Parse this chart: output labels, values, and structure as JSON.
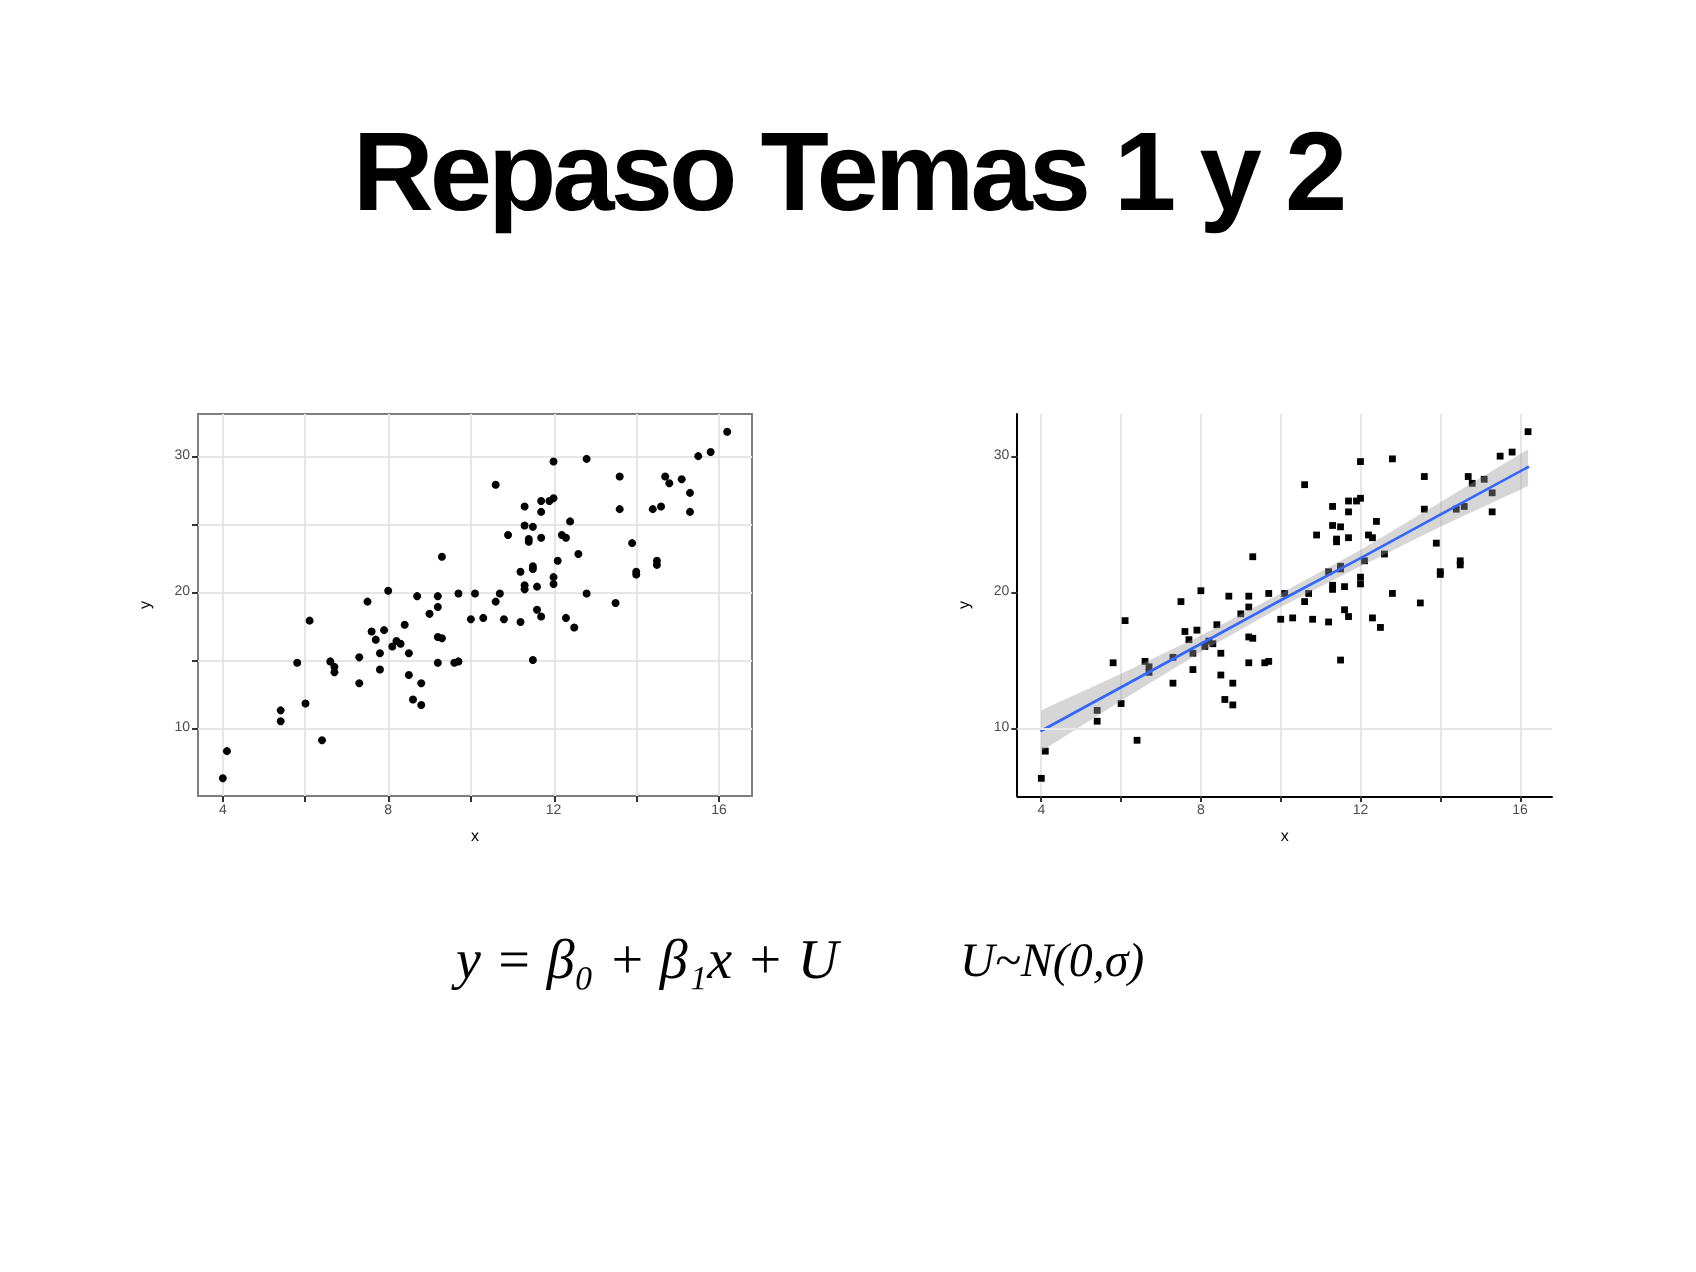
{
  "chart_data": [
    {
      "type": "other",
      "title": "Repaso Temas 1 y 2"
    },
    {
      "type": "scatter",
      "xlabel": "x",
      "ylabel": "y",
      "xlim": [
        3.4,
        16.8
      ],
      "ylim": [
        5,
        33.1
      ],
      "xticks": [
        4,
        {
          "value": 6,
          "label": null
        },
        8,
        {
          "value": 10,
          "label": null
        },
        12,
        {
          "value": 14,
          "label": null
        },
        16
      ],
      "yticks": [
        10,
        {
          "value": 15,
          "label": null
        },
        20,
        {
          "value": 25,
          "label": null
        },
        30
      ],
      "grid": true,
      "marker": "circle",
      "x": [
        4.0,
        4.1,
        5.4,
        5.4,
        5.8,
        6.0,
        6.1,
        6.4,
        6.6,
        6.7,
        6.7,
        7.3,
        7.3,
        7.5,
        7.6,
        7.7,
        7.8,
        7.8,
        7.9,
        8.0,
        8.1,
        8.2,
        8.3,
        8.4,
        8.5,
        8.5,
        8.6,
        8.7,
        8.8,
        8.8,
        9.0,
        9.2,
        9.2,
        9.2,
        9.2,
        9.3,
        9.3,
        9.6,
        9.7,
        9.7,
        10.0,
        10.1,
        10.3,
        10.6,
        10.6,
        10.7,
        10.8,
        10.9,
        11.2,
        11.2,
        11.3,
        11.3,
        11.3,
        11.3,
        11.4,
        11.4,
        11.5,
        11.5,
        11.5,
        11.5,
        11.6,
        11.6,
        11.7,
        11.7,
        11.7,
        11.7,
        11.9,
        12.0,
        12.0,
        12.0,
        12.0,
        12.1,
        12.2,
        12.3,
        12.3,
        12.4,
        12.5,
        12.6,
        12.8,
        12.8,
        13.5,
        13.6,
        13.6,
        13.9,
        14.0,
        14.0,
        14.4,
        14.5,
        14.5,
        14.6,
        14.7,
        14.8,
        15.1,
        15.3,
        15.3,
        15.5,
        15.8,
        16.2
      ],
      "series": [
        {
          "color": "#000000",
          "values": [
            6.3,
            8.3,
            11.3,
            10.5,
            14.8,
            11.8,
            17.9,
            9.1,
            14.9,
            14.5,
            14.1,
            13.3,
            15.2,
            19.3,
            17.1,
            16.5,
            15.5,
            14.3,
            17.2,
            20.1,
            16.0,
            16.4,
            16.2,
            17.6,
            15.5,
            13.9,
            12.1,
            19.7,
            11.7,
            13.3,
            18.4,
            19.7,
            14.8,
            18.9,
            16.7,
            16.6,
            22.6,
            14.8,
            14.9,
            19.9,
            18.0,
            19.9,
            18.1,
            27.9,
            19.3,
            19.9,
            18.0,
            24.2,
            21.5,
            17.8,
            26.3,
            24.9,
            20.5,
            20.2,
            23.7,
            23.9,
            21.9,
            15.0,
            21.7,
            24.8,
            20.4,
            18.7,
            25.9,
            24.0,
            26.7,
            18.2,
            26.7,
            26.9,
            20.6,
            21.1,
            29.6,
            22.3,
            24.2,
            24.0,
            18.1,
            25.2,
            17.4,
            22.8,
            29.8,
            19.9,
            19.2,
            28.5,
            26.1,
            23.6,
            21.3,
            21.5,
            26.1,
            22.3,
            22.0,
            26.3,
            28.5,
            28.0,
            28.3,
            27.3,
            25.9,
            30.0,
            30.3,
            31.8
          ]
        }
      ]
    },
    {
      "type": "scatter",
      "xlabel": "x",
      "ylabel": "y",
      "xlim": [
        3.4,
        16.8
      ],
      "ylim": [
        5,
        33.1
      ],
      "xticks": [
        4,
        {
          "value": 6,
          "label": null
        },
        8,
        {
          "value": 10,
          "label": null
        },
        12,
        {
          "value": 14,
          "label": null
        },
        16
      ],
      "yticks": [
        10,
        20,
        30
      ],
      "grid": "x",
      "marker": "square",
      "ref_lines": [
        {
          "axis": "y",
          "value": 10,
          "color": "#e6e6e6"
        }
      ],
      "x": [
        4.0,
        4.1,
        5.4,
        5.4,
        5.8,
        6.0,
        6.1,
        6.4,
        6.6,
        6.7,
        6.7,
        7.3,
        7.3,
        7.5,
        7.6,
        7.7,
        7.8,
        7.8,
        7.9,
        8.0,
        8.1,
        8.2,
        8.3,
        8.4,
        8.5,
        8.5,
        8.6,
        8.7,
        8.8,
        8.8,
        9.0,
        9.2,
        9.2,
        9.2,
        9.2,
        9.3,
        9.3,
        9.6,
        9.7,
        9.7,
        10.0,
        10.1,
        10.3,
        10.6,
        10.6,
        10.7,
        10.8,
        10.9,
        11.2,
        11.2,
        11.3,
        11.3,
        11.3,
        11.3,
        11.4,
        11.4,
        11.5,
        11.5,
        11.5,
        11.5,
        11.6,
        11.6,
        11.7,
        11.7,
        11.7,
        11.7,
        11.9,
        12.0,
        12.0,
        12.0,
        12.0,
        12.1,
        12.2,
        12.3,
        12.3,
        12.4,
        12.5,
        12.6,
        12.8,
        12.8,
        13.5,
        13.6,
        13.6,
        13.9,
        14.0,
        14.0,
        14.4,
        14.5,
        14.5,
        14.6,
        14.7,
        14.8,
        15.1,
        15.3,
        15.3,
        15.5,
        15.8,
        16.2
      ],
      "series": [
        {
          "type": "scatter",
          "color": "#000000",
          "values": [
            6.3,
            8.3,
            11.3,
            10.5,
            14.8,
            11.8,
            17.9,
            9.1,
            14.9,
            14.5,
            14.1,
            13.3,
            15.2,
            19.3,
            17.1,
            16.5,
            15.5,
            14.3,
            17.2,
            20.1,
            16.0,
            16.4,
            16.2,
            17.6,
            15.5,
            13.9,
            12.1,
            19.7,
            11.7,
            13.3,
            18.4,
            19.7,
            14.8,
            18.9,
            16.7,
            16.6,
            22.6,
            14.8,
            14.9,
            19.9,
            18.0,
            19.9,
            18.1,
            27.9,
            19.3,
            19.9,
            18.0,
            24.2,
            21.5,
            17.8,
            26.3,
            24.9,
            20.5,
            20.2,
            23.7,
            23.9,
            21.9,
            15.0,
            21.7,
            24.8,
            20.4,
            18.7,
            25.9,
            24.0,
            26.7,
            18.2,
            26.7,
            26.9,
            20.6,
            21.1,
            29.6,
            22.3,
            24.2,
            24.0,
            18.1,
            25.2,
            17.4,
            22.8,
            29.8,
            19.9,
            19.2,
            28.5,
            26.1,
            23.6,
            21.3,
            21.5,
            26.1,
            22.3,
            22.0,
            26.3,
            28.5,
            28.0,
            28.3,
            27.3,
            25.9,
            30.0,
            30.3,
            31.8
          ]
        },
        {
          "type": "line",
          "color": "#3366ff",
          "marker": "none",
          "x": [
            4,
            6,
            8,
            10,
            12,
            14,
            16.2
          ],
          "values": [
            9.8,
            13.0,
            16.2,
            19.4,
            22.5,
            25.7,
            29.2
          ],
          "lower": [
            8.3,
            12.0,
            15.6,
            18.9,
            21.9,
            24.8,
            27.8
          ],
          "upper": [
            11.3,
            14.0,
            16.8,
            19.9,
            23.1,
            26.6,
            30.5
          ]
        }
      ]
    },
    {
      "type": "other",
      "annotations": [
        "y = β₀ + β₁x + U",
        "U~N(0,σ)"
      ]
    }
  ]
}
